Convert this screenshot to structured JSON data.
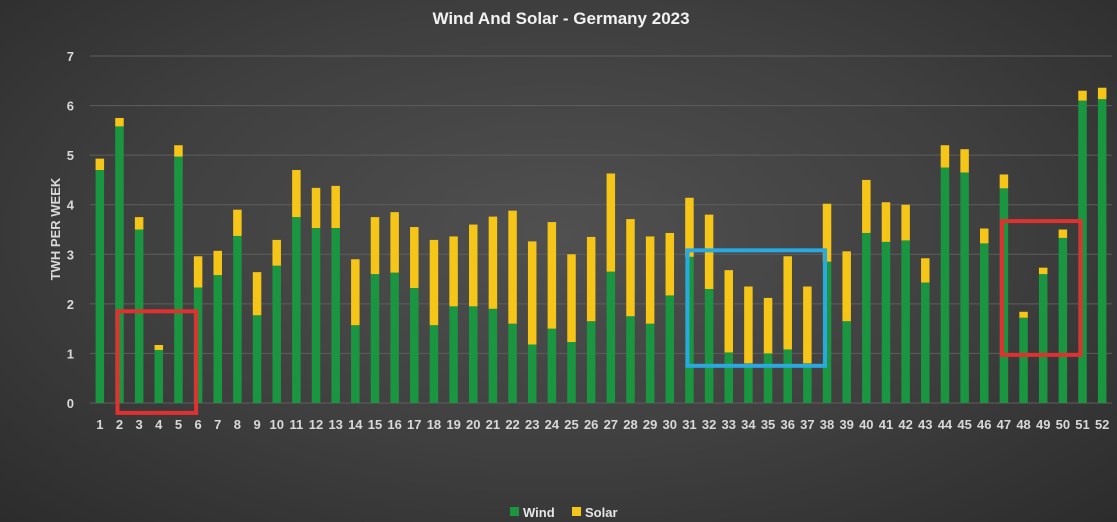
{
  "chart_data": {
    "type": "bar",
    "stacked": true,
    "title": "Wind And Solar - Germany 2023",
    "ylabel": "TWH PER WEEK",
    "xlabel": "",
    "ylim": [
      0,
      7
    ],
    "yticks": [
      0,
      1,
      2,
      3,
      4,
      5,
      6,
      7
    ],
    "grid": true,
    "legend_position": "bottom",
    "categories": [
      "1",
      "2",
      "3",
      "4",
      "5",
      "6",
      "7",
      "8",
      "9",
      "10",
      "11",
      "12",
      "13",
      "14",
      "15",
      "16",
      "17",
      "18",
      "19",
      "20",
      "21",
      "22",
      "23",
      "24",
      "25",
      "26",
      "27",
      "28",
      "29",
      "30",
      "31",
      "32",
      "33",
      "34",
      "35",
      "36",
      "37",
      "38",
      "39",
      "40",
      "41",
      "42",
      "43",
      "44",
      "45",
      "46",
      "47",
      "48",
      "49",
      "50",
      "51",
      "52"
    ],
    "series": [
      {
        "name": "Wind",
        "color": "#1a9641",
        "values": [
          4.7,
          5.58,
          3.5,
          1.07,
          4.97,
          2.33,
          2.58,
          3.37,
          1.77,
          2.77,
          3.75,
          3.53,
          3.53,
          1.57,
          2.6,
          2.63,
          2.32,
          1.57,
          1.95,
          1.95,
          1.9,
          1.6,
          1.18,
          1.5,
          1.23,
          1.65,
          2.65,
          1.75,
          1.6,
          2.17,
          2.95,
          2.3,
          1.02,
          0.8,
          1.0,
          1.08,
          0.8,
          2.85,
          1.65,
          3.43,
          3.25,
          3.28,
          2.43,
          4.75,
          4.65,
          3.22,
          4.33,
          1.72,
          2.6,
          3.33,
          6.1,
          6.13
        ]
      },
      {
        "name": "Solar",
        "color": "#f5c518",
        "values": [
          0.23,
          0.17,
          0.25,
          0.1,
          0.23,
          0.63,
          0.49,
          0.53,
          0.87,
          0.52,
          0.95,
          0.81,
          0.85,
          1.33,
          1.15,
          1.22,
          1.23,
          1.72,
          1.41,
          1.65,
          1.86,
          2.28,
          2.08,
          2.15,
          1.77,
          1.7,
          1.98,
          1.96,
          1.76,
          1.26,
          1.19,
          1.5,
          1.66,
          1.55,
          1.12,
          1.88,
          1.55,
          1.17,
          1.41,
          1.07,
          0.8,
          0.72,
          0.49,
          0.45,
          0.47,
          0.3,
          0.28,
          0.12,
          0.13,
          0.17,
          0.2,
          0.23
        ]
      }
    ],
    "annotations": [
      {
        "type": "rectangle",
        "color": "#e03030",
        "x_from": "2",
        "x_to": "6",
        "y_from": -0.2,
        "y_to": 1.85
      },
      {
        "type": "rectangle",
        "color": "#2aa8e0",
        "x_from": "31",
        "x_to": "38",
        "y_from": 0.75,
        "y_to": 3.08
      },
      {
        "type": "rectangle",
        "color": "#e03030",
        "x_from": "47",
        "x_to": "51",
        "y_from": 0.97,
        "y_to": 3.67
      }
    ],
    "gridline_color": "#5e5e5e"
  }
}
